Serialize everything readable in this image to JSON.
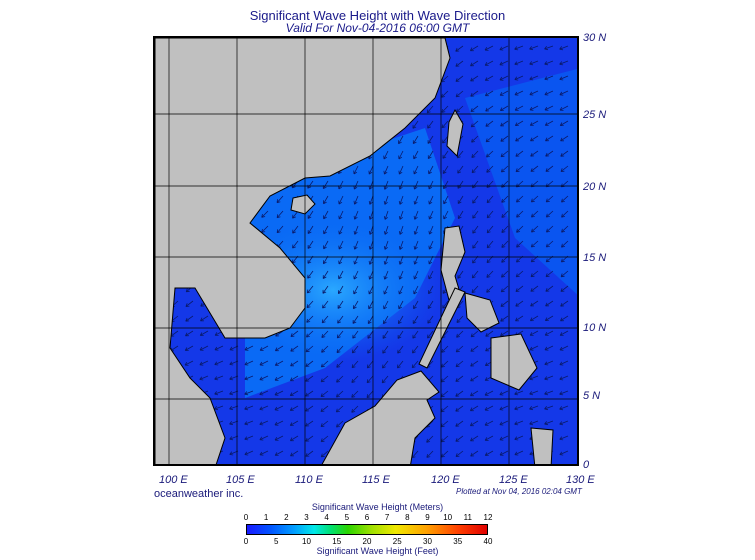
{
  "title": "Significant Wave Height with Wave Direction",
  "subtitle": "Valid For Nov-04-2016 06:00 GMT",
  "map": {
    "lon_range": [
      98.5,
      130
    ],
    "lat_range": [
      0,
      30
    ],
    "lon_labels": [
      "100 E",
      "105 E",
      "110 E",
      "115 E",
      "120 E",
      "125 E",
      "130 E"
    ],
    "lat_labels": [
      "30 N",
      "25 N",
      "20 N",
      "15 N",
      "10 N",
      "5 N",
      "0"
    ],
    "colors": {
      "land": "#c0c0c0",
      "deep_blue": "#1438e8",
      "mid_blue": "#0a6af5",
      "light_blue": "#1ea0ff",
      "arrow": "#0a1a6a",
      "grid": "#000000"
    }
  },
  "brand": "oceanweather inc.",
  "plotted": "Plotted at Nov 04, 2016 02:04 GMT",
  "legend": {
    "title_meters": "Significant Wave Height (Meters)",
    "title_feet": "Significant Wave Height (Feet)",
    "meters_ticks": [
      "0",
      "1",
      "2",
      "3",
      "4",
      "5",
      "6",
      "7",
      "8",
      "9",
      "10",
      "11",
      "12"
    ],
    "feet_ticks": [
      "0",
      "5",
      "10",
      "15",
      "20",
      "25",
      "30",
      "35",
      "40"
    ]
  }
}
